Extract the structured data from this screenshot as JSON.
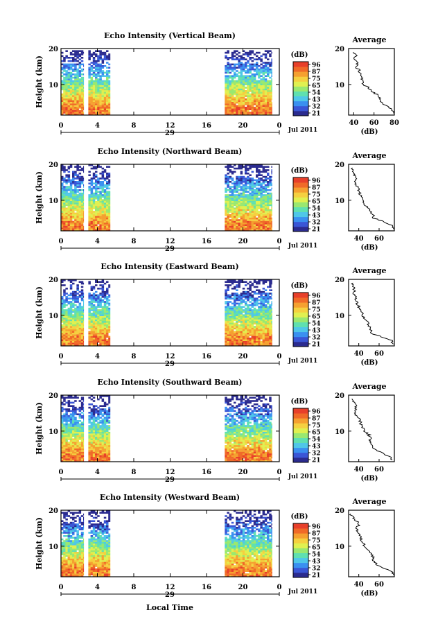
{
  "figure": {
    "bottom_label": "Local Time",
    "date_label": "Jul 2011",
    "day_label": "29",
    "colorbar_unit": "(dB)",
    "avg_xlabel": "(dB)",
    "avg_title": "Average"
  },
  "colorbar": {
    "ticks": [
      "96",
      "87",
      "75",
      "65",
      "54",
      "43",
      "32",
      "21"
    ],
    "colors": [
      "#2b2b8f",
      "#3a56d6",
      "#3a90f0",
      "#4fc7e8",
      "#5fe0b0",
      "#9ae870",
      "#e0f050",
      "#f5d040",
      "#f5a030",
      "#f06a28",
      "#e8402a"
    ]
  },
  "chart_data": [
    {
      "type": "heatmap",
      "title": "Echo Intensity (Vertical Beam)",
      "ylabel": "Height (km)",
      "xlabel": "Local Time",
      "x_ticks": [
        "0",
        "4",
        "8",
        "12",
        "16",
        "20",
        "0"
      ],
      "y_ticks": [
        "20",
        "10"
      ],
      "xlim": [
        0,
        24
      ],
      "ylim": [
        1.5,
        20
      ],
      "data_gaps_hours": [
        [
          2.5,
          3.0
        ],
        [
          5.4,
          18.0
        ]
      ],
      "values_dB_range": [
        21,
        96
      ],
      "average_profile": {
        "title": "Average",
        "xlabel": "(dB)",
        "x_ticks": [
          "40",
          "60",
          "80"
        ],
        "xlim": [
          35,
          80
        ],
        "y_ticks": [
          "20",
          "10"
        ],
        "height_km": [
          19,
          18,
          17,
          16,
          15,
          14,
          13,
          12,
          11,
          10,
          9,
          8,
          7,
          6,
          5,
          4,
          3,
          2
        ],
        "avg_dB": [
          40,
          42,
          41,
          44,
          42,
          45,
          47,
          48,
          48,
          50,
          55,
          58,
          64,
          66,
          68,
          72,
          77,
          79
        ]
      }
    },
    {
      "type": "heatmap",
      "title": "Echo Intensity (Northward Beam)",
      "ylabel": "Height (km)",
      "xlabel": "Local Time",
      "x_ticks": [
        "0",
        "4",
        "8",
        "12",
        "16",
        "20",
        "0"
      ],
      "y_ticks": [
        "20",
        "10"
      ],
      "xlim": [
        0,
        24
      ],
      "ylim": [
        1.5,
        20
      ],
      "data_gaps_hours": [
        [
          2.5,
          3.0
        ],
        [
          5.4,
          18.0
        ]
      ],
      "values_dB_range": [
        21,
        96
      ],
      "average_profile": {
        "title": "Average",
        "xlabel": "(dB)",
        "x_ticks": [
          "40",
          "60"
        ],
        "xlim": [
          30,
          75
        ],
        "y_ticks": [
          "20",
          "10"
        ],
        "height_km": [
          19,
          18,
          17,
          16,
          15,
          14,
          13,
          12,
          11,
          10,
          9,
          8,
          7,
          6,
          5,
          4,
          3,
          2
        ],
        "avg_dB": [
          33,
          35,
          36,
          38,
          37,
          38,
          40,
          41,
          42,
          44,
          46,
          48,
          52,
          54,
          55,
          65,
          72,
          74
        ]
      }
    },
    {
      "type": "heatmap",
      "title": "Echo Intensity (Eastward Beam)",
      "ylabel": "Height (km)",
      "xlabel": "Local Time",
      "x_ticks": [
        "0",
        "4",
        "8",
        "12",
        "16",
        "20",
        "0"
      ],
      "y_ticks": [
        "20",
        "10"
      ],
      "xlim": [
        0,
        24
      ],
      "ylim": [
        1.5,
        20
      ],
      "data_gaps_hours": [
        [
          2.5,
          3.0
        ],
        [
          5.4,
          18.0
        ]
      ],
      "values_dB_range": [
        21,
        96
      ],
      "average_profile": {
        "title": "Average",
        "xlabel": "(dB)",
        "x_ticks": [
          "40",
          "60"
        ],
        "xlim": [
          30,
          75
        ],
        "y_ticks": [
          "20",
          "10"
        ],
        "height_km": [
          19,
          18,
          17,
          16,
          15,
          14,
          13,
          12,
          11,
          10,
          9,
          8,
          7,
          6,
          5,
          4,
          3,
          2
        ],
        "avg_dB": [
          33,
          34,
          36,
          35,
          37,
          38,
          39,
          41,
          43,
          44,
          46,
          49,
          50,
          52,
          53,
          63,
          72,
          74
        ]
      }
    },
    {
      "type": "heatmap",
      "title": "Echo Intensity (Southward Beam)",
      "ylabel": "Height (km)",
      "xlabel": "Local Time",
      "x_ticks": [
        "0",
        "4",
        "8",
        "12",
        "16",
        "20",
        "0"
      ],
      "y_ticks": [
        "20",
        "10"
      ],
      "xlim": [
        0,
        24
      ],
      "ylim": [
        1.5,
        20
      ],
      "data_gaps_hours": [
        [
          2.5,
          3.0
        ],
        [
          5.4,
          18.0
        ]
      ],
      "values_dB_range": [
        21,
        96
      ],
      "average_profile": {
        "title": "Average",
        "xlabel": "(dB)",
        "x_ticks": [
          "40",
          "60"
        ],
        "xlim": [
          30,
          75
        ],
        "y_ticks": [
          "20",
          "10"
        ],
        "height_km": [
          19,
          18,
          17,
          16,
          15,
          14,
          13,
          12,
          11,
          10,
          9,
          8,
          7,
          6,
          5,
          4,
          3,
          2
        ],
        "avg_dB": [
          33,
          35,
          37,
          38,
          36,
          39,
          41,
          42,
          44,
          46,
          50,
          51,
          52,
          54,
          55,
          62,
          70,
          73
        ]
      }
    },
    {
      "type": "heatmap",
      "title": "Echo Intensity (Westward Beam)",
      "ylabel": "Height (km)",
      "xlabel": "Local Time",
      "x_ticks": [
        "0",
        "4",
        "8",
        "12",
        "16",
        "20",
        "0"
      ],
      "y_ticks": [
        "20",
        "10"
      ],
      "xlim": [
        0,
        24
      ],
      "ylim": [
        1.5,
        20
      ],
      "data_gaps_hours": [
        [
          2.5,
          3.0
        ],
        [
          5.4,
          18.0
        ]
      ],
      "values_dB_range": [
        21,
        96
      ],
      "average_profile": {
        "title": "Average",
        "xlabel": "(dB)",
        "x_ticks": [
          "40",
          "60"
        ],
        "xlim": [
          30,
          75
        ],
        "y_ticks": [
          "20",
          "10"
        ],
        "height_km": [
          19,
          18,
          17,
          16,
          15,
          14,
          13,
          12,
          11,
          10,
          9,
          8,
          7,
          6,
          5,
          4,
          3,
          2
        ],
        "avg_dB": [
          32,
          34,
          38,
          40,
          38,
          39,
          41,
          42,
          44,
          46,
          50,
          52,
          54,
          55,
          57,
          64,
          72,
          74
        ]
      }
    }
  ]
}
